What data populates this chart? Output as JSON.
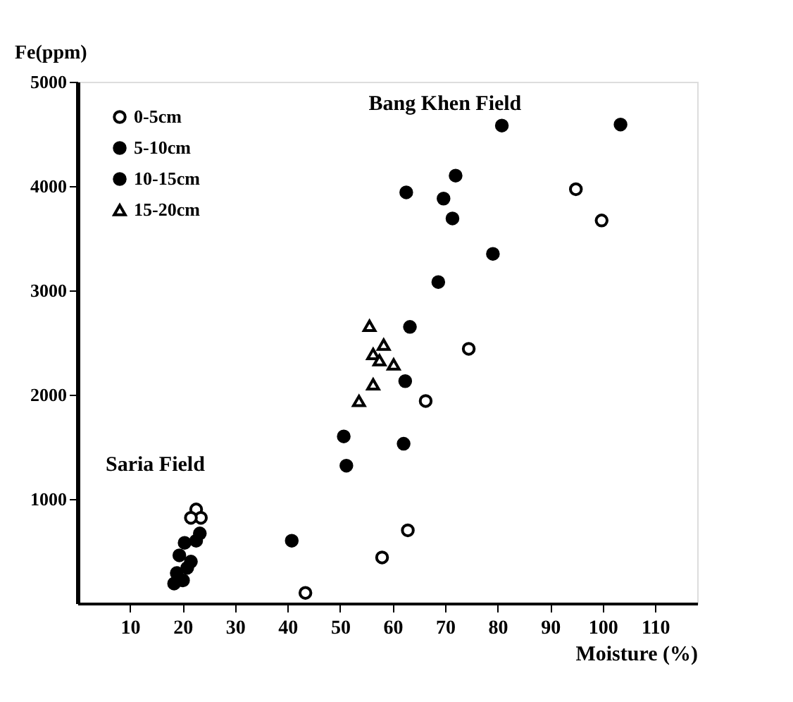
{
  "chart_data": {
    "type": "scatter",
    "xlabel": "Moisture (%)",
    "ylabel": "Fe(ppm)",
    "xlim": [
      0,
      118
    ],
    "ylim": [
      0,
      5000
    ],
    "xticks": [
      10,
      20,
      30,
      40,
      50,
      60,
      70,
      80,
      90,
      100,
      110
    ],
    "yticks": [
      1000,
      2000,
      3000,
      4000,
      5000
    ],
    "grid": false,
    "legend": "top left",
    "annotations": [
      "Saria Field",
      "Bang Khen Field"
    ],
    "series": [
      {
        "name": "0-5cm",
        "color": "#000000",
        "marker": "circle",
        "colors": [
          "#ffffff",
          "#ffffff",
          "#ffffff",
          "#ffffff",
          "#ffffff",
          "#ffffff",
          "#ffffff",
          "#ffffff",
          "#ffffff",
          "#ffffff"
        ],
        "x": [
          94.9,
          99.8,
          74.5,
          66.3,
          62.9,
          58,
          43.4,
          22.6,
          23.5,
          21.6
        ],
        "values": [
          3970,
          3670,
          2440,
          1940,
          700,
          440,
          100,
          900,
          820,
          820
        ]
      },
      {
        "name": "5-10cm",
        "color": "#000000",
        "marker": "circle",
        "x": [
          62.6,
          63.3,
          62.4,
          51.2,
          62.1,
          40.8,
          20.4,
          21.6,
          18.9,
          18.4
        ],
        "values": [
          3940,
          2650,
          2130,
          1320,
          1530,
          600,
          580,
          400,
          290,
          190
        ]
      },
      {
        "name": "10-15cm",
        "color": "#000000",
        "marker": "circle",
        "x": [
          80.8,
          103.4,
          72,
          69.7,
          71.4,
          79.1,
          68.7,
          50.7,
          23.3,
          22.6,
          19.4,
          20.9,
          20.1
        ],
        "values": [
          4580,
          4590,
          4100,
          3880,
          3690,
          3350,
          3080,
          1600,
          670,
          600,
          460,
          340,
          220
        ]
      },
      {
        "name": "15-20cm",
        "color": "#000000",
        "marker": "triangle",
        "colors": [
          "#ffffff",
          "#ffffff",
          "#ffffff",
          "#ffffff",
          "#ffffff",
          "#ffffff",
          "#ffffff"
        ],
        "x": [
          55.6,
          58.3,
          56.3,
          57.5,
          60.2,
          56.3,
          53.6
        ],
        "values": [
          2660,
          2480,
          2390,
          2330,
          2290,
          2100,
          1940
        ]
      }
    ]
  }
}
